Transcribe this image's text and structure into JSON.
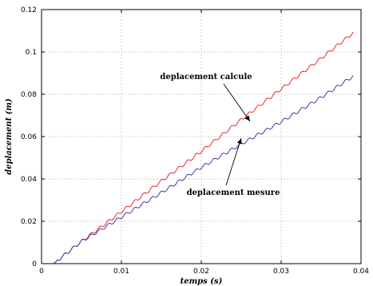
{
  "chart_data": {
    "type": "line",
    "title": "",
    "xlabel": "temps (s)",
    "ylabel": "deplacement (m)",
    "xlim": [
      0,
      0.04
    ],
    "ylim": [
      0,
      0.12
    ],
    "xticks": [
      0,
      0.01,
      0.02,
      0.03,
      0.04
    ],
    "xtick_labels": [
      "0",
      "0.01",
      "0.02",
      "0.03",
      "0.04"
    ],
    "yticks": [
      0,
      0.02,
      0.04,
      0.06,
      0.08,
      0.1,
      0.12
    ],
    "ytick_labels": [
      "0",
      "0.02",
      "0.04",
      "0.06",
      "0.08",
      "0.1",
      "0.12"
    ],
    "grid": true,
    "series": [
      {
        "name": "deplacement calcule",
        "color": "#e8282e",
        "x": [
          0.0015,
          0.005,
          0.01,
          0.015,
          0.02,
          0.025,
          0.03,
          0.035,
          0.039
        ],
        "y": [
          0.0,
          0.0105,
          0.0245,
          0.039,
          0.053,
          0.068,
          0.0825,
          0.097,
          0.109
        ]
      },
      {
        "name": "deplacement mesure",
        "color": "#3a3aa8",
        "x": [
          0.0015,
          0.005,
          0.01,
          0.015,
          0.02,
          0.025,
          0.03,
          0.035,
          0.039
        ],
        "y": [
          0.0,
          0.0105,
          0.022,
          0.0335,
          0.0455,
          0.0565,
          0.067,
          0.0785,
          0.0885
        ]
      }
    ],
    "annotations": [
      {
        "text": "deplacement calcule",
        "series": 0
      },
      {
        "text": "deplacement mesure",
        "series": 1
      }
    ]
  }
}
